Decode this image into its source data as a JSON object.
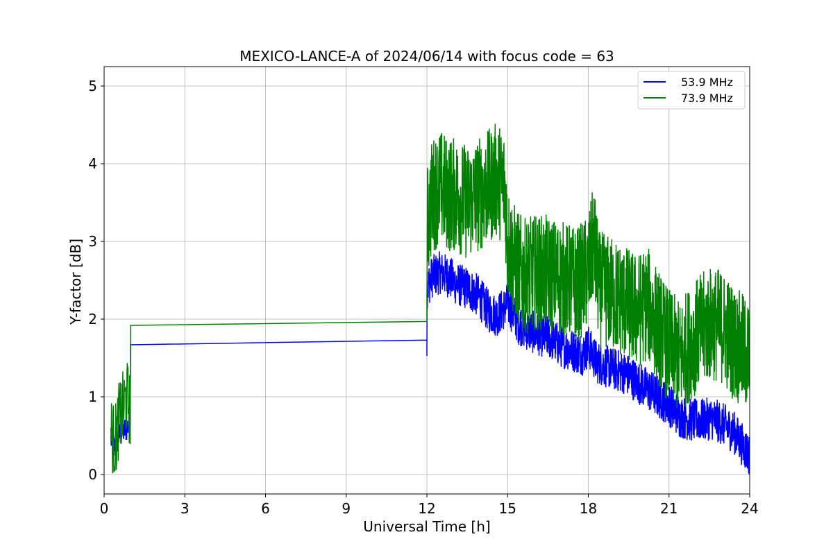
{
  "chart_data": {
    "type": "line",
    "title": "MEXICO-LANCE-A of 2024/06/14 with focus code = 63",
    "xlabel": "Universal Time [h]",
    "ylabel": "Y-factor [dB]",
    "xlim": [
      0,
      24
    ],
    "ylim": [
      -0.25,
      5.25
    ],
    "xticks": [
      0,
      3,
      6,
      9,
      12,
      15,
      18,
      21,
      24
    ],
    "yticks": [
      0,
      1,
      2,
      3,
      4,
      5
    ],
    "grid": true,
    "legend_position": "top-right",
    "series": [
      {
        "name": "53.9 MHz",
        "color": "#0000ff",
        "x": [
          0.25,
          0.4,
          0.55,
          0.7,
          0.85,
          0.98,
          0.98,
          12.0,
          12.0,
          12.2,
          12.5,
          12.8,
          13.1,
          13.5,
          13.9,
          14.3,
          14.6,
          14.9,
          15.0,
          15.4,
          15.8,
          16.2,
          16.6,
          17.0,
          17.4,
          17.8,
          18.0,
          18.3,
          18.6,
          19.0,
          19.4,
          19.8,
          20.2,
          20.6,
          21.0,
          21.4,
          21.8,
          22.2,
          22.6,
          23.0,
          23.4,
          23.7,
          24.0
        ],
        "y": [
          0.45,
          0.35,
          0.5,
          0.55,
          0.6,
          0.7,
          1.67,
          1.73,
          2.4,
          2.55,
          2.6,
          2.55,
          2.45,
          2.4,
          2.3,
          2.1,
          2.05,
          2.15,
          2.2,
          1.95,
          1.85,
          1.8,
          1.75,
          1.65,
          1.6,
          1.55,
          1.65,
          1.45,
          1.4,
          1.35,
          1.3,
          1.2,
          1.1,
          1.0,
          0.9,
          0.75,
          0.7,
          0.7,
          0.72,
          0.65,
          0.55,
          0.4,
          0.25
        ]
      },
      {
        "name": "73.9 MHz",
        "color": "#008000",
        "x": [
          0.25,
          0.4,
          0.55,
          0.7,
          0.85,
          0.98,
          0.98,
          12.0,
          12.0,
          12.2,
          12.5,
          12.8,
          13.1,
          13.5,
          13.9,
          14.3,
          14.6,
          14.9,
          15.0,
          15.3,
          15.6,
          16.0,
          16.4,
          16.8,
          17.2,
          17.6,
          18.0,
          18.2,
          18.4,
          18.7,
          19.0,
          19.4,
          19.8,
          20.2,
          20.6,
          21.0,
          21.4,
          21.8,
          22.2,
          22.6,
          23.0,
          23.4,
          23.7,
          24.0
        ],
        "y": [
          0.55,
          0.4,
          0.7,
          0.85,
          1.0,
          0.8,
          1.92,
          1.97,
          3.2,
          3.6,
          3.7,
          3.6,
          3.6,
          3.5,
          3.6,
          3.7,
          3.8,
          3.7,
          3.0,
          2.7,
          2.55,
          2.6,
          2.6,
          2.55,
          2.5,
          2.45,
          2.6,
          3.0,
          2.4,
          2.35,
          2.3,
          2.2,
          2.1,
          2.2,
          1.9,
          1.65,
          1.5,
          1.7,
          1.85,
          1.95,
          1.9,
          1.7,
          1.6,
          1.5
        ]
      }
    ]
  }
}
